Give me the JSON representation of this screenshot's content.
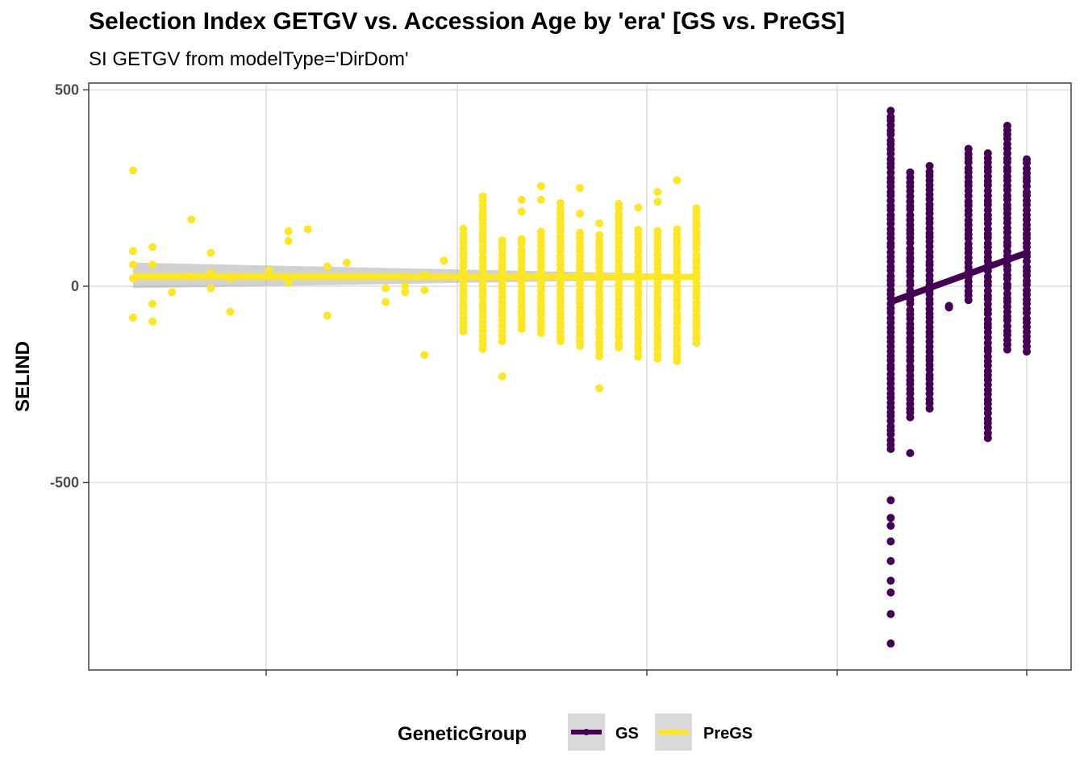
{
  "chart_data": {
    "type": "scatter",
    "title": "Selection Index GETGV vs. Accession Age by 'era' [GS vs. PreGS]",
    "subtitle": "SI GETGV from modelType='DirDom'",
    "xlabel": "",
    "ylabel": "SELIND",
    "ylim": [
      -980,
      505
    ],
    "yticks": [
      500,
      0,
      -500
    ],
    "y_tick_labels": [
      "500",
      "0",
      "-500"
    ],
    "x_tick_labels": [],
    "grid": true,
    "legend": {
      "title": "GeneticGroup",
      "position": "bottom",
      "entries": [
        {
          "label": "GS",
          "color": "#440154"
        },
        {
          "label": "PreGS",
          "color": "#FDE725"
        }
      ]
    },
    "series": [
      {
        "name": "PreGS",
        "color": "#FDE725",
        "points": [
          [
            1,
            295
          ],
          [
            1,
            90
          ],
          [
            1,
            55
          ],
          [
            1,
            20
          ],
          [
            1,
            -80
          ],
          [
            2,
            100
          ],
          [
            2,
            55
          ],
          [
            2,
            -45
          ],
          [
            2,
            -90
          ],
          [
            3,
            -15
          ],
          [
            4,
            170
          ],
          [
            4,
            25
          ],
          [
            5,
            85
          ],
          [
            5,
            35
          ],
          [
            5,
            -5
          ],
          [
            6,
            20
          ],
          [
            6,
            -65
          ],
          [
            8,
            40
          ],
          [
            9,
            140
          ],
          [
            9,
            115
          ],
          [
            9,
            10
          ],
          [
            10,
            145
          ],
          [
            11,
            50
          ],
          [
            11,
            -75
          ],
          [
            12,
            60
          ],
          [
            14,
            -5
          ],
          [
            14,
            -40
          ],
          [
            15,
            0
          ],
          [
            15,
            -15
          ],
          [
            16,
            30
          ],
          [
            16,
            -10
          ],
          [
            16,
            -175
          ],
          [
            17,
            65
          ]
        ],
        "columns": [
          {
            "x": 18,
            "min": -115,
            "max": 145,
            "extras": [
              -80
            ]
          },
          {
            "x": 19,
            "min": -150,
            "max": 230,
            "extras": [
              -160,
              180
            ]
          },
          {
            "x": 20,
            "min": -125,
            "max": 115,
            "extras": [
              -230,
              -140
            ]
          },
          {
            "x": 21,
            "min": -110,
            "max": 120,
            "extras": [
              190,
              220
            ]
          },
          {
            "x": 22,
            "min": -120,
            "max": 140,
            "extras": [
              220,
              255
            ]
          },
          {
            "x": 23,
            "min": -140,
            "max": 210,
            "extras": []
          },
          {
            "x": 24,
            "min": -150,
            "max": 135,
            "extras": [
              185,
              250
            ]
          },
          {
            "x": 25,
            "min": -180,
            "max": 130,
            "extras": [
              -260,
              160
            ]
          },
          {
            "x": 26,
            "min": -155,
            "max": 210,
            "extras": []
          },
          {
            "x": 27,
            "min": -180,
            "max": 145,
            "extras": [
              200
            ]
          },
          {
            "x": 28,
            "min": -185,
            "max": 140,
            "extras": [
              240,
              215
            ]
          },
          {
            "x": 29,
            "min": -190,
            "max": 145,
            "extras": [
              -160,
              270
            ]
          },
          {
            "x": 30,
            "min": -145,
            "max": 200,
            "extras": []
          }
        ],
        "trend": {
          "x": [
            1,
            30
          ],
          "y": [
            25,
            24
          ],
          "ci_start": [
            -5,
            60
          ],
          "ci_end": [
            18,
            30
          ]
        }
      },
      {
        "name": "GS",
        "color": "#440154",
        "columns": [
          {
            "x": 40,
            "min": -415,
            "max": 445,
            "extras": [
              -545,
              -590,
              -610,
              -650,
              -700,
              -750,
              -780,
              -835,
              -910
            ]
          },
          {
            "x": 41,
            "min": -335,
            "max": 290,
            "extras": [
              -425
            ]
          },
          {
            "x": 42,
            "min": -310,
            "max": 305,
            "extras": []
          },
          {
            "x": 43,
            "min": -55,
            "max": -50,
            "extras": []
          },
          {
            "x": 44,
            "min": -35,
            "max": 350,
            "extras": []
          },
          {
            "x": 45,
            "min": -385,
            "max": 340,
            "extras": []
          },
          {
            "x": 46,
            "min": -160,
            "max": 410,
            "extras": []
          },
          {
            "x": 47,
            "min": -165,
            "max": 325,
            "extras": []
          }
        ],
        "trend": {
          "x": [
            40,
            47
          ],
          "y": [
            -40,
            85
          ]
        }
      }
    ]
  }
}
